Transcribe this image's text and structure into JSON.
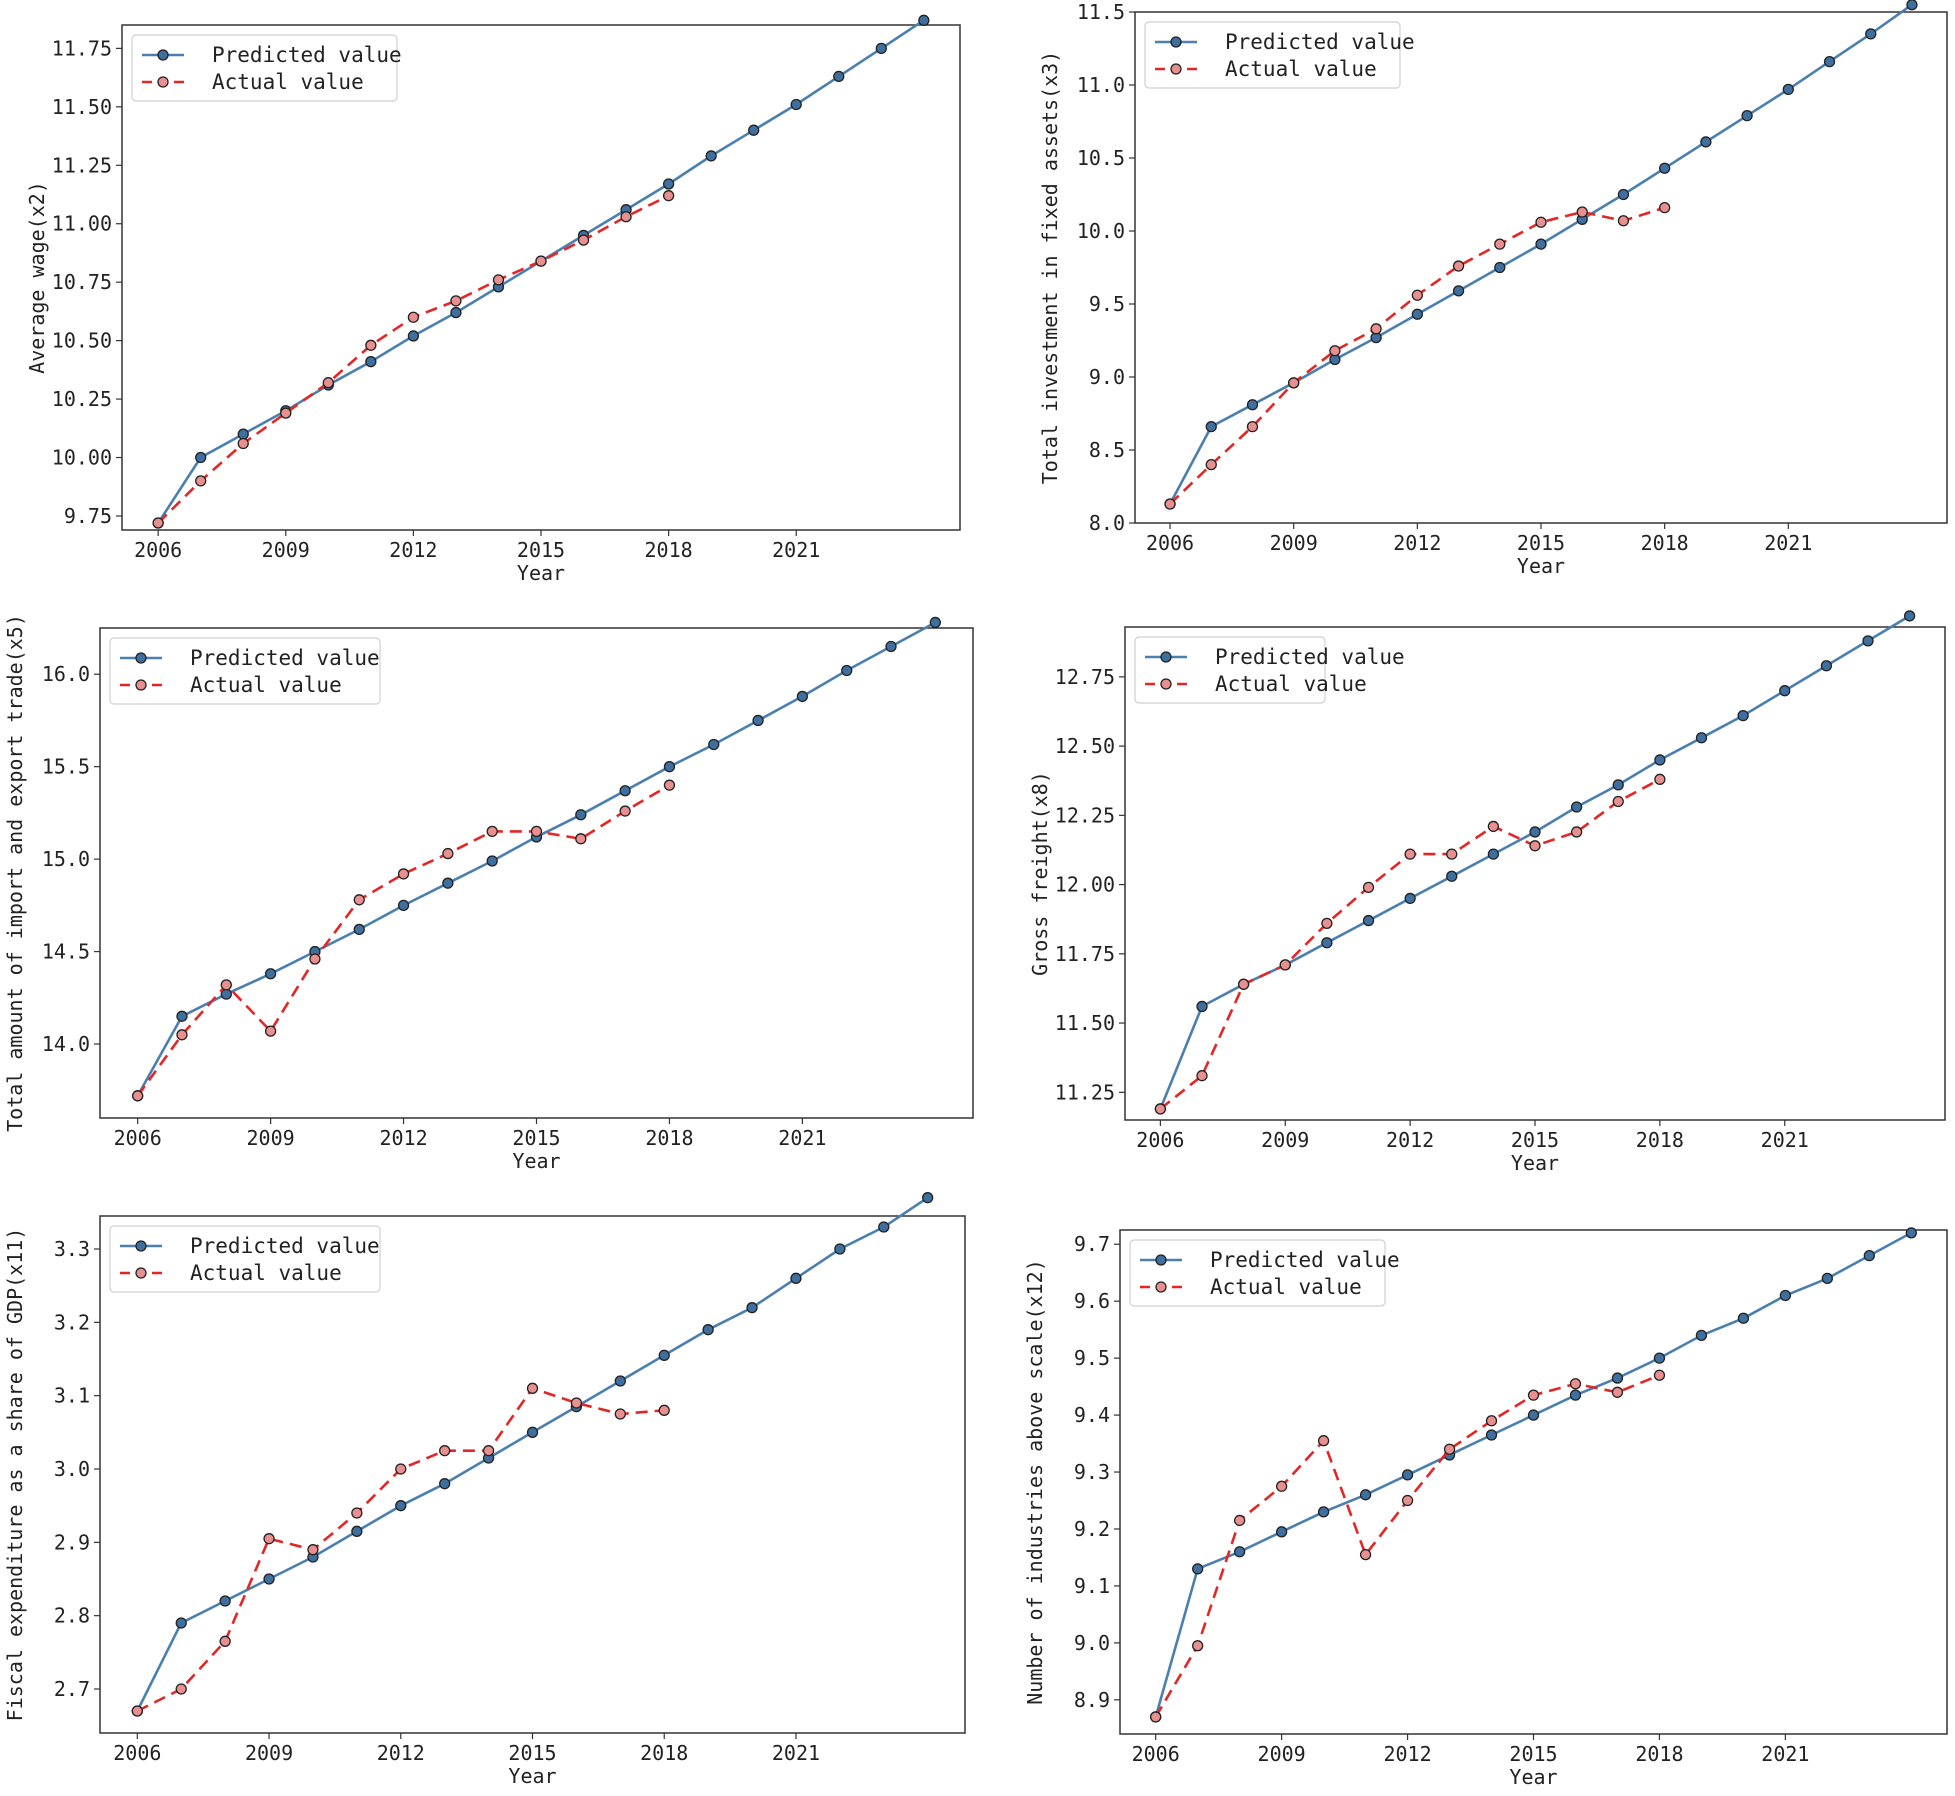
{
  "figure": {
    "legend_predicted": "Predicted value",
    "legend_actual": "Actual value",
    "predicted_color": "#4a7faf",
    "actual_color": "#e32626",
    "marker_fill_predicted": "#3f6f9f",
    "marker_fill_actual": "#e89090"
  },
  "chart_data": [
    {
      "type": "line",
      "xlabel": "Year",
      "ylabel": "Average wage(x2)",
      "xticks": [
        2006,
        2009,
        2012,
        2015,
        2018,
        2021
      ],
      "yticks": [
        "9.75",
        "10.00",
        "10.25",
        "10.50",
        "10.75",
        "11.00",
        "11.25",
        "11.50",
        "11.75"
      ],
      "ylim": [
        9.69,
        11.85
      ],
      "xlim": [
        2005.15,
        2024.85
      ],
      "legend_position": "upper-left",
      "series": [
        {
          "name": "Predicted value",
          "x": [
            2006,
            2007,
            2008,
            2009,
            2010,
            2011,
            2012,
            2013,
            2014,
            2015,
            2016,
            2017,
            2018,
            2019,
            2020,
            2021,
            2022,
            2023,
            2024
          ],
          "values": [
            9.72,
            10.0,
            10.1,
            10.2,
            10.31,
            10.41,
            10.52,
            10.62,
            10.73,
            10.84,
            10.95,
            11.06,
            11.17,
            11.29,
            11.4,
            11.51,
            11.63,
            11.75,
            11.87
          ]
        },
        {
          "name": "Actual value",
          "x": [
            2006,
            2007,
            2008,
            2009,
            2010,
            2011,
            2012,
            2013,
            2014,
            2015,
            2016,
            2017,
            2018
          ],
          "values": [
            9.72,
            9.9,
            10.06,
            10.19,
            10.32,
            10.48,
            10.6,
            10.67,
            10.76,
            10.84,
            10.93,
            11.03,
            11.12
          ]
        }
      ]
    },
    {
      "type": "line",
      "xlabel": "Year",
      "ylabel": "Total investment in fixed assets(x3)",
      "xticks": [
        2006,
        2009,
        2012,
        2015,
        2018,
        2021
      ],
      "yticks": [
        "8.0",
        "8.5",
        "9.0",
        "9.5",
        "10.0",
        "10.5",
        "11.0",
        "11.5"
      ],
      "ylim": [
        8.0,
        11.5
      ],
      "xlim": [
        2005.15,
        2024.85
      ],
      "legend_position": "upper-left",
      "series": [
        {
          "name": "Predicted value",
          "x": [
            2006,
            2007,
            2008,
            2009,
            2010,
            2011,
            2012,
            2013,
            2014,
            2015,
            2016,
            2017,
            2018,
            2019,
            2020,
            2021,
            2022,
            2023,
            2024
          ],
          "values": [
            8.13,
            8.66,
            8.81,
            8.96,
            9.12,
            9.27,
            9.43,
            9.59,
            9.75,
            9.91,
            10.08,
            10.25,
            10.43,
            10.61,
            10.79,
            10.97,
            11.16,
            11.35,
            11.55
          ]
        },
        {
          "name": "Actual value",
          "x": [
            2006,
            2007,
            2008,
            2009,
            2010,
            2011,
            2012,
            2013,
            2014,
            2015,
            2016,
            2017,
            2018
          ],
          "values": [
            8.13,
            8.4,
            8.66,
            8.96,
            9.18,
            9.33,
            9.56,
            9.76,
            9.91,
            10.06,
            10.13,
            10.07,
            10.16
          ]
        }
      ]
    },
    {
      "type": "line",
      "xlabel": "Year",
      "ylabel": "Total amount of import and export trade(x5)",
      "xticks": [
        2006,
        2009,
        2012,
        2015,
        2018,
        2021
      ],
      "yticks": [
        "14.0",
        "14.5",
        "15.0",
        "15.5",
        "16.0"
      ],
      "ylim": [
        13.6,
        16.25
      ],
      "xlim": [
        2005.15,
        2024.85
      ],
      "legend_position": "upper-left",
      "series": [
        {
          "name": "Predicted value",
          "x": [
            2006,
            2007,
            2008,
            2009,
            2010,
            2011,
            2012,
            2013,
            2014,
            2015,
            2016,
            2017,
            2018,
            2019,
            2020,
            2021,
            2022,
            2023,
            2024
          ],
          "values": [
            13.72,
            14.15,
            14.27,
            14.38,
            14.5,
            14.62,
            14.75,
            14.87,
            14.99,
            15.12,
            15.24,
            15.37,
            15.5,
            15.62,
            15.75,
            15.88,
            16.02,
            16.15,
            16.28
          ]
        },
        {
          "name": "Actual value",
          "x": [
            2006,
            2007,
            2008,
            2009,
            2010,
            2011,
            2012,
            2013,
            2014,
            2015,
            2016,
            2017,
            2018
          ],
          "values": [
            13.72,
            14.05,
            14.32,
            14.07,
            14.46,
            14.78,
            14.92,
            15.03,
            15.15,
            15.15,
            15.11,
            15.26,
            15.4
          ]
        }
      ]
    },
    {
      "type": "line",
      "xlabel": "Year",
      "ylabel": "Gross freight(x8)",
      "xticks": [
        2006,
        2009,
        2012,
        2015,
        2018,
        2021
      ],
      "yticks": [
        "11.25",
        "11.50",
        "11.75",
        "12.00",
        "12.25",
        "12.50",
        "12.75"
      ],
      "ylim": [
        11.15,
        12.93
      ],
      "xlim": [
        2005.15,
        2024.85
      ],
      "legend_position": "upper-left",
      "series": [
        {
          "name": "Predicted value",
          "x": [
            2006,
            2007,
            2008,
            2009,
            2010,
            2011,
            2012,
            2013,
            2014,
            2015,
            2016,
            2017,
            2018,
            2019,
            2020,
            2021,
            2022,
            2023,
            2024
          ],
          "values": [
            11.19,
            11.56,
            11.64,
            11.71,
            11.79,
            11.87,
            11.95,
            12.03,
            12.11,
            12.19,
            12.28,
            12.36,
            12.45,
            12.53,
            12.61,
            12.7,
            12.79,
            12.88,
            12.97
          ]
        },
        {
          "name": "Actual value",
          "x": [
            2006,
            2007,
            2008,
            2009,
            2010,
            2011,
            2012,
            2013,
            2014,
            2015,
            2016,
            2017,
            2018
          ],
          "values": [
            11.19,
            11.31,
            11.64,
            11.71,
            11.86,
            11.99,
            12.11,
            12.11,
            12.21,
            12.14,
            12.19,
            12.3,
            12.38
          ]
        }
      ]
    },
    {
      "type": "line",
      "xlabel": "Year",
      "ylabel": "Fiscal expenditure as a share of GDP(x11)",
      "xticks": [
        2006,
        2009,
        2012,
        2015,
        2018,
        2021
      ],
      "yticks": [
        "2.7",
        "2.8",
        "2.9",
        "3.0",
        "3.1",
        "3.2",
        "3.3"
      ],
      "ylim": [
        2.64,
        3.345
      ],
      "xlim": [
        2005.15,
        2024.85
      ],
      "legend_position": "upper-left",
      "series": [
        {
          "name": "Predicted value",
          "x": [
            2006,
            2007,
            2008,
            2009,
            2010,
            2011,
            2012,
            2013,
            2014,
            2015,
            2016,
            2017,
            2018,
            2019,
            2020,
            2021,
            2022,
            2023,
            2024
          ],
          "values": [
            2.67,
            2.79,
            2.82,
            2.85,
            2.88,
            2.915,
            2.95,
            2.98,
            3.015,
            3.05,
            3.085,
            3.12,
            3.155,
            3.19,
            3.22,
            3.26,
            3.3,
            3.33,
            3.37
          ]
        },
        {
          "name": "Actual value",
          "x": [
            2006,
            2007,
            2008,
            2009,
            2010,
            2011,
            2012,
            2013,
            2014,
            2015,
            2016,
            2017,
            2018
          ],
          "values": [
            2.67,
            2.7,
            2.765,
            2.905,
            2.89,
            2.94,
            3.0,
            3.025,
            3.025,
            3.11,
            3.09,
            3.075,
            3.08
          ]
        }
      ]
    },
    {
      "type": "line",
      "xlabel": "Year",
      "ylabel": "Number of industries above scale(x12)",
      "xticks": [
        2006,
        2009,
        2012,
        2015,
        2018,
        2021
      ],
      "yticks": [
        "8.9",
        "9.0",
        "9.1",
        "9.2",
        "9.3",
        "9.4",
        "9.5",
        "9.6",
        "9.7"
      ],
      "ylim": [
        8.84,
        9.725
      ],
      "xlim": [
        2005.15,
        2024.85
      ],
      "legend_position": "upper-left",
      "series": [
        {
          "name": "Predicted value",
          "x": [
            2006,
            2007,
            2008,
            2009,
            2010,
            2011,
            2012,
            2013,
            2014,
            2015,
            2016,
            2017,
            2018,
            2019,
            2020,
            2021,
            2022,
            2023,
            2024
          ],
          "values": [
            8.87,
            9.13,
            9.16,
            9.195,
            9.23,
            9.26,
            9.295,
            9.33,
            9.365,
            9.4,
            9.435,
            9.465,
            9.5,
            9.54,
            9.57,
            9.61,
            9.64,
            9.68,
            9.72
          ]
        },
        {
          "name": "Actual value",
          "x": [
            2006,
            2007,
            2008,
            2009,
            2010,
            2011,
            2012,
            2013,
            2014,
            2015,
            2016,
            2017,
            2018
          ],
          "values": [
            8.87,
            8.995,
            9.215,
            9.275,
            9.355,
            9.155,
            9.25,
            9.34,
            9.39,
            9.435,
            9.455,
            9.44,
            9.47
          ]
        }
      ]
    }
  ]
}
